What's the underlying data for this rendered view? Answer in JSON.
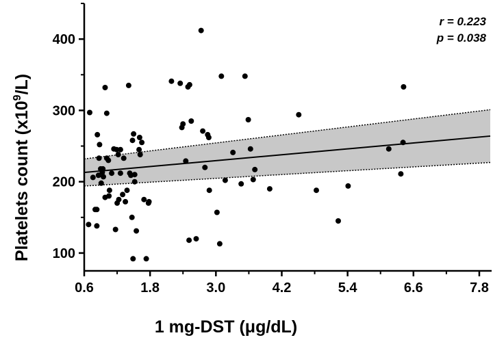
{
  "chart_data": {
    "type": "scatter",
    "title": "",
    "xlabel": "1 mg-DST (μg/dL)",
    "ylabel_main": "Platelets count (x10",
    "ylabel_sup": "9",
    "ylabel_tail": "/L)",
    "xlim": [
      0.6,
      8.0
    ],
    "ylim": [
      75,
      450
    ],
    "xticks": [
      0.6,
      1.8,
      3.0,
      4.2,
      5.4,
      6.6,
      7.8
    ],
    "xtick_labels": [
      "0.6",
      "1.8",
      "3.0",
      "4.2",
      "5.4",
      "6.6",
      "7.8"
    ],
    "yticks": [
      100,
      200,
      300,
      400
    ],
    "ytick_labels": [
      "100",
      "200",
      "300",
      "400"
    ],
    "annotations": {
      "r": "r = 0.223",
      "p": "p = 0.038"
    },
    "regression": {
      "line": [
        [
          0.6,
          213
        ],
        [
          8.0,
          264
        ]
      ],
      "ci_upper": [
        [
          0.6,
          232
        ],
        [
          8.0,
          301
        ]
      ],
      "ci_lower": [
        [
          0.6,
          194
        ],
        [
          8.0,
          227
        ]
      ]
    },
    "points": [
      [
        0.7,
        297
      ],
      [
        0.68,
        140
      ],
      [
        0.76,
        206
      ],
      [
        0.8,
        161
      ],
      [
        0.83,
        161
      ],
      [
        0.83,
        138
      ],
      [
        0.84,
        266
      ],
      [
        0.86,
        209
      ],
      [
        0.87,
        233
      ],
      [
        0.88,
        252
      ],
      [
        0.9,
        218
      ],
      [
        0.91,
        198
      ],
      [
        0.93,
        213
      ],
      [
        0.94,
        218
      ],
      [
        0.95,
        207
      ],
      [
        0.98,
        332
      ],
      [
        0.98,
        178
      ],
      [
        1.01,
        296
      ],
      [
        1.01,
        233
      ],
      [
        1.04,
        230
      ],
      [
        1.05,
        180
      ],
      [
        1.06,
        188
      ],
      [
        1.1,
        212
      ],
      [
        1.14,
        246
      ],
      [
        1.17,
        133
      ],
      [
        1.19,
        245
      ],
      [
        1.2,
        170
      ],
      [
        1.23,
        175
      ],
      [
        1.22,
        238
      ],
      [
        1.26,
        245
      ],
      [
        1.26,
        212
      ],
      [
        1.3,
        182
      ],
      [
        1.32,
        233
      ],
      [
        1.35,
        172
      ],
      [
        1.38,
        188
      ],
      [
        1.41,
        335
      ],
      [
        1.43,
        212
      ],
      [
        1.45,
        209
      ],
      [
        1.47,
        150
      ],
      [
        1.48,
        258
      ],
      [
        1.5,
        267
      ],
      [
        1.52,
        210
      ],
      [
        1.52,
        200
      ],
      [
        1.49,
        92
      ],
      [
        1.55,
        131
      ],
      [
        1.6,
        245
      ],
      [
        1.61,
        262
      ],
      [
        1.62,
        238
      ],
      [
        1.65,
        255
      ],
      [
        1.69,
        175
      ],
      [
        1.73,
        92
      ],
      [
        1.77,
        170
      ],
      [
        1.78,
        172
      ],
      [
        2.19,
        341
      ],
      [
        2.35,
        338
      ],
      [
        2.38,
        276
      ],
      [
        2.4,
        281
      ],
      [
        2.45,
        229
      ],
      [
        2.49,
        333
      ],
      [
        2.52,
        336
      ],
      [
        2.55,
        285
      ],
      [
        2.51,
        118
      ],
      [
        2.64,
        120
      ],
      [
        2.73,
        412
      ],
      [
        2.76,
        271
      ],
      [
        2.8,
        220
      ],
      [
        2.85,
        266
      ],
      [
        2.87,
        262
      ],
      [
        2.88,
        188
      ],
      [
        3.02,
        157
      ],
      [
        3.07,
        113
      ],
      [
        3.1,
        348
      ],
      [
        3.17,
        202
      ],
      [
        3.31,
        241
      ],
      [
        3.46,
        197
      ],
      [
        3.53,
        348
      ],
      [
        3.59,
        287
      ],
      [
        3.63,
        246
      ],
      [
        3.68,
        203
      ],
      [
        3.71,
        217
      ],
      [
        3.98,
        190
      ],
      [
        4.51,
        294
      ],
      [
        4.83,
        188
      ],
      [
        5.23,
        145
      ],
      [
        5.41,
        194
      ],
      [
        6.15,
        246
      ],
      [
        6.37,
        211
      ],
      [
        6.41,
        255
      ],
      [
        6.42,
        333
      ]
    ]
  }
}
